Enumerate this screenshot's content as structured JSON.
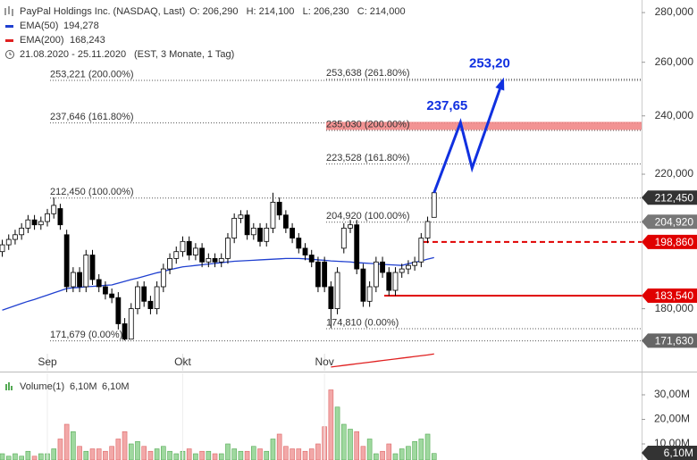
{
  "chart_data": {
    "type": "candlestick",
    "title": "PayPal Holdings Inc. (NASDAQ, Last)",
    "ohlc_text": "O: 206,290   H: 214,100   L: 206,230   C: 214,000",
    "period": "21.08.2020 - 25.11.2020",
    "period_note": "(EST, 3 Monate, 1 Tag)",
    "log_scale": true,
    "up_color": "#ffffff",
    "down_color": "#000000",
    "open": [
      196,
      198,
      199.6,
      201,
      203,
      205.5,
      204,
      205,
      207.4,
      209,
      201,
      186,
      190,
      186,
      195,
      188,
      186,
      184,
      183,
      176,
      172,
      180,
      186,
      182,
      180,
      186,
      191,
      194,
      196,
      199,
      195,
      197,
      193,
      194,
      193,
      194,
      200,
      206,
      207,
      201,
      203,
      199,
      203,
      211,
      207,
      203,
      200,
      197,
      195,
      193,
      193,
      186,
      180,
      197,
      203,
      204,
      191,
      182,
      186,
      193,
      190,
      185,
      190,
      191,
      192,
      193,
      200,
      206.29
    ],
    "high": [
      199.5,
      201.1,
      202.5,
      204.5,
      207,
      207,
      206.5,
      208.9,
      212.45,
      210.5,
      202.5,
      191.5,
      191.5,
      196.5,
      196.5,
      189.5,
      187.5,
      185.5,
      184.5,
      177.5,
      181.5,
      187.5,
      187.5,
      183.5,
      187.5,
      192.5,
      195.5,
      197.5,
      200.5,
      200.5,
      198.5,
      198.5,
      195.5,
      195.5,
      195.5,
      201.5,
      207.5,
      208.5,
      208.5,
      204.5,
      204.5,
      204.5,
      214,
      212.5,
      208.5,
      204.5,
      201.5,
      198.5,
      196.5,
      194.5,
      194.5,
      187.5,
      191.5,
      204.5,
      205.5,
      205.5,
      192.5,
      187.5,
      194.5,
      194.5,
      191.5,
      191.5,
      192.5,
      193.5,
      194.5,
      201.5,
      206.5,
      214.1
    ],
    "low": [
      194.5,
      196.5,
      198.1,
      199.5,
      201.5,
      202.5,
      202.5,
      203.5,
      205.9,
      202.5,
      184.5,
      184.5,
      184.5,
      184.5,
      186.5,
      184.5,
      182.5,
      181.5,
      174.5,
      171.679,
      172.5,
      178.5,
      180.5,
      178.5,
      178.5,
      184.5,
      189.5,
      192.5,
      194.5,
      193.5,
      193.5,
      191.5,
      191.5,
      191.5,
      191.5,
      192.5,
      198.5,
      204.5,
      199.5,
      199.5,
      197.5,
      197.5,
      201.5,
      205.5,
      201.5,
      198.5,
      195.5,
      193.5,
      191.5,
      184.5,
      184.5,
      174.81,
      178.5,
      195.5,
      201.5,
      189.5,
      180.5,
      180.5,
      184.5,
      188.5,
      183.5,
      183.5,
      188.5,
      189.5,
      190.5,
      191.5,
      198.5,
      206.23
    ],
    "close": [
      198,
      199.6,
      201,
      203,
      205.5,
      204,
      205,
      207.4,
      210,
      204,
      186,
      190,
      186,
      195,
      188,
      186,
      184,
      183,
      176,
      172,
      180,
      186,
      182,
      180,
      186,
      191,
      194,
      196,
      199,
      195,
      197,
      193,
      194,
      193,
      194,
      200,
      206,
      207,
      201,
      203,
      199,
      203,
      211,
      207,
      203,
      200,
      197,
      195,
      193,
      186,
      186,
      180,
      190,
      203,
      204,
      191,
      182,
      186,
      193,
      190,
      185,
      190,
      191,
      192,
      193,
      200,
      205,
      214
    ],
    "xticks": [
      {
        "value": 7,
        "label": "Sep"
      },
      {
        "value": 28,
        "label": "Okt"
      },
      {
        "value": 50,
        "label": "Nov"
      }
    ],
    "xlim": [
      -0.35,
      99.2
    ],
    "ylim": [
      164.1,
      285.3
    ],
    "yticks": [
      {
        "value": 280,
        "label": "280,000"
      },
      {
        "value": 260,
        "label": "260,000"
      },
      {
        "value": 240,
        "label": "240,000"
      },
      {
        "value": 220,
        "label": "220,000"
      },
      {
        "value": 180,
        "label": "180,000"
      }
    ],
    "indicators": [
      {
        "name": "EMA(50)",
        "color": "#2040d0",
        "last_label": "194,278",
        "values": [
          179.6,
          180.2,
          180.8,
          181.4,
          182,
          182.5,
          183.1,
          183.7,
          184.3,
          184.9,
          185.5,
          185.7,
          185.8,
          186,
          186.1,
          186.2,
          186.4,
          186.5,
          187,
          187.5,
          188,
          188.4,
          188.9,
          189.4,
          189.9,
          190.3,
          190.8,
          191.2,
          191.6,
          191.8,
          192,
          192.2,
          192.4,
          192.6,
          192.8,
          193,
          193.2,
          193.3,
          193.4,
          193.5,
          193.6,
          193.7,
          193.8,
          193.9,
          194,
          194,
          194,
          193.9,
          193.8,
          193.6,
          193.5,
          193.3,
          193.2,
          193.1,
          193,
          192.8,
          192.7,
          192.6,
          192.5,
          192.3,
          192.2,
          192.1,
          192,
          192.5,
          192.9,
          193.3,
          193.8,
          194.278
        ]
      },
      {
        "name": "EMA(200)",
        "color": "#e02020",
        "last_label": "168,243",
        "values": [
          null,
          null,
          null,
          null,
          null,
          null,
          null,
          null,
          null,
          null,
          null,
          null,
          null,
          null,
          null,
          null,
          null,
          null,
          null,
          null,
          null,
          null,
          null,
          null,
          null,
          null,
          null,
          null,
          null,
          null,
          null,
          null,
          null,
          null,
          null,
          null,
          null,
          null,
          null,
          null,
          null,
          null,
          null,
          null,
          null,
          null,
          null,
          null,
          null,
          null,
          null,
          165,
          165.2,
          165.4,
          165.6,
          165.8,
          166,
          166.2,
          166.4,
          166.6,
          166.8,
          167,
          167.2,
          167.4,
          167.6,
          167.8,
          168,
          168.243
        ]
      }
    ],
    "fib_sets": [
      {
        "levels": [
          {
            "value": 253.221,
            "label": "253,221 (200.00%)"
          },
          {
            "value": 237.646,
            "label": "237,646 (161.80%)"
          },
          {
            "value": 212.45,
            "label": "212,450 (100.00%)"
          },
          {
            "value": 171.679,
            "label": "171,679 (0.00%)"
          }
        ]
      },
      {
        "levels": [
          {
            "value": 253.638,
            "label": "253,638 (261.80%)"
          },
          {
            "value": 235.03,
            "label": "235,030 (200.00%)",
            "highlight": "#f08080"
          },
          {
            "value": 223.528,
            "label": "223,528 (161.80%)"
          },
          {
            "value": 204.92,
            "label": "204,920 (100.00%)"
          },
          {
            "value": 174.81,
            "label": "174,810 (0.00%)"
          }
        ]
      }
    ],
    "price_lines": [
      {
        "value": 198.86,
        "color": "#e00000",
        "style": "dashed"
      },
      {
        "value": 183.54,
        "color": "#e00000",
        "style": "solid"
      }
    ],
    "price_markers": [
      {
        "value": 212.45,
        "label": "212,450",
        "color": "#333333"
      },
      {
        "value": 204.92,
        "label": "204,920",
        "color": "#777777"
      },
      {
        "value": 198.86,
        "label": "198,860",
        "color": "#e00000"
      },
      {
        "value": 183.54,
        "label": "183,540",
        "color": "#e00000"
      },
      {
        "value": 171.63,
        "label": "171,630",
        "color": "#666666"
      }
    ],
    "projection": {
      "color": "#1030e0",
      "x": [
        67,
        71.1,
        72.9,
        77.7
      ],
      "values": [
        214,
        237.65,
        222,
        253.2
      ],
      "value_labels": [
        null,
        "237,65",
        null,
        "253,20"
      ]
    },
    "volume": {
      "name": "Volume(1)",
      "legend_values": [
        "6,10M",
        "6,10M"
      ],
      "up_color": "#9fd89f",
      "down_color": "#f2a8a8",
      "values": [
        6,
        5,
        6,
        5,
        7,
        5,
        6,
        6,
        8,
        12,
        18,
        15,
        9,
        7,
        8,
        8,
        7,
        9,
        12,
        15,
        10,
        11,
        9,
        7,
        8,
        9,
        7,
        6,
        7,
        8,
        6,
        7,
        7,
        6,
        6,
        10,
        8,
        7,
        7,
        9,
        8,
        7,
        12,
        14,
        9,
        8,
        8,
        7,
        8,
        10,
        17,
        32,
        25,
        18,
        16,
        15,
        9,
        12,
        6,
        7,
        10,
        6,
        8,
        9,
        11,
        12,
        14,
        6.1
      ],
      "ylim": [
        3.45,
        38
      ],
      "yticks": [
        {
          "value": 30,
          "label": "30,00M"
        },
        {
          "value": 20,
          "label": "20,00M"
        },
        {
          "value": 10,
          "label": "10,00M"
        }
      ],
      "marker": {
        "value": 6.1,
        "label": "6,10M",
        "color": "#333333"
      }
    }
  }
}
